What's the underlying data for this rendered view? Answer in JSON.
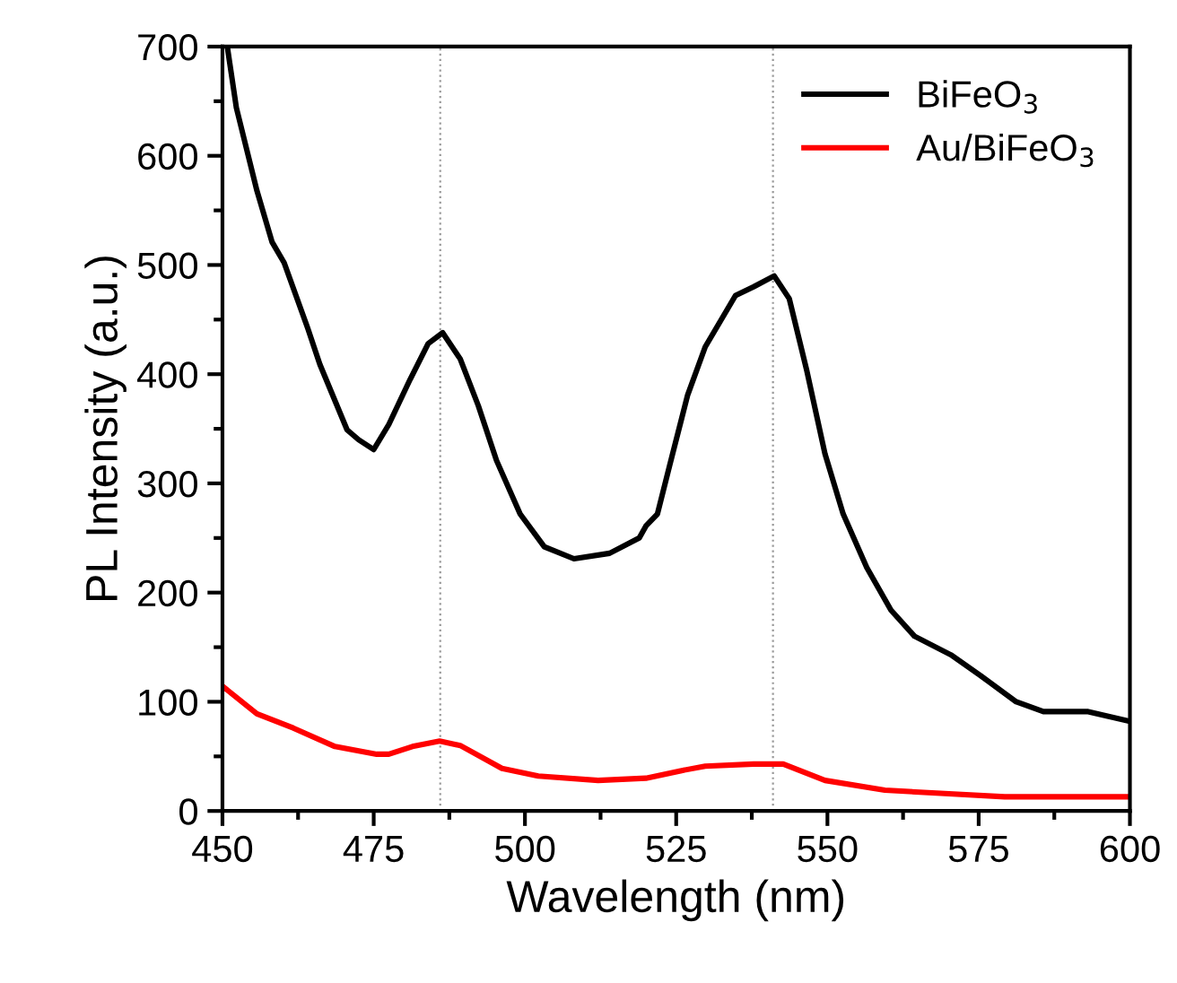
{
  "chart_data": {
    "type": "line",
    "xlabel": "Wavelength (nm)",
    "ylabel": "PL Intensity (a.u.)",
    "xlim": [
      450,
      600
    ],
    "ylim": [
      0,
      700
    ],
    "xticks": [
      450,
      475,
      500,
      525,
      550,
      575,
      600
    ],
    "yticks": [
      0,
      100,
      200,
      300,
      400,
      500,
      600,
      700
    ],
    "grid": false,
    "legend": "top right",
    "marker": "none",
    "line_style": "solid",
    "ref_lines": [
      {
        "axis": "x",
        "value": 486,
        "color": "#999999",
        "line_style": "dotted"
      },
      {
        "axis": "x",
        "value": 541,
        "color": "#999999",
        "line_style": "dotted"
      }
    ],
    "series": [
      {
        "name": "BiFeO$_{3}$",
        "color": "#000000",
        "x": [
          450.8,
          452.3,
          455.7,
          458.2,
          460.2,
          464.1,
          466.1,
          470.6,
          472.5,
          475.0,
          477.5,
          481,
          484,
          486.4,
          489.3,
          492.3,
          495.3,
          499.2,
          503.2,
          508.1,
          514,
          518.9,
          520,
          521.9,
          523.9,
          526.9,
          529.8,
          534.8,
          537.8,
          541.2,
          543.7,
          546.6,
          549.6,
          552.6,
          556.5,
          560.5,
          564.4,
          570.4,
          575.3,
          581.2,
          585.7,
          593.1,
          600
        ],
        "values": [
          700,
          644,
          568,
          521,
          502,
          442,
          409,
          349,
          340,
          331,
          354,
          395,
          428,
          438,
          414,
          371,
          321,
          272,
          242,
          231,
          236,
          250,
          261,
          272,
          316,
          381,
          425,
          472,
          480,
          490,
          469,
          403,
          327,
          272,
          223,
          184,
          160,
          143,
          124,
          100,
          91,
          91,
          82
        ]
      },
      {
        "name": "Au/BiFeO$_{3}$",
        "color": "#ff0000",
        "x": [
          450.3,
          455.7,
          461.7,
          468.6,
          475.5,
          477.5,
          481.4,
          485.9,
          489.3,
          496.2,
          502.2,
          512.1,
          520,
          525.9,
          529.8,
          537.8,
          542.7,
          549.6,
          559.5,
          569.4,
          579.3,
          600
        ],
        "values": [
          113,
          89,
          76,
          59,
          52,
          52,
          59,
          64,
          60,
          39,
          32,
          28,
          30,
          37,
          41,
          43,
          43,
          28,
          19,
          16,
          13,
          13
        ]
      }
    ]
  }
}
